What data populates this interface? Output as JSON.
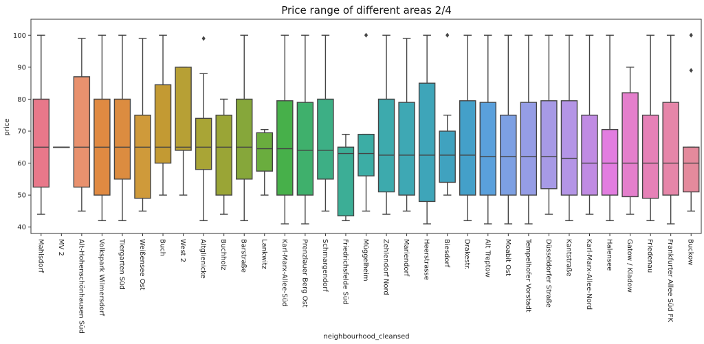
{
  "chart_data": {
    "type": "box",
    "title": "Price range of different areas 2/4",
    "xlabel": "neighbourhood_cleansed",
    "ylabel": "price",
    "ylim": [
      38,
      105
    ],
    "yticks": [
      40,
      50,
      60,
      70,
      80,
      90,
      100
    ],
    "grid": false,
    "legend": "none",
    "categories": [
      {
        "name": "Mahlsdorf",
        "color": "#e8788a",
        "whisker_low": 44,
        "q1": 52.5,
        "median": 65,
        "q3": 80,
        "whisker_high": 100,
        "outliers": []
      },
      {
        "name": "MV 2",
        "color": "#e58563",
        "whisker_low": 65,
        "q1": 65,
        "median": 65,
        "q3": 65,
        "whisker_high": 65,
        "outliers": []
      },
      {
        "name": "Alt-Hohenschönhausen Süd",
        "color": "#e8916e",
        "whisker_low": 45,
        "q1": 52.5,
        "median": 65,
        "q3": 87,
        "whisker_high": 99,
        "outliers": []
      },
      {
        "name": "Volkspark Wilmersdorf",
        "color": "#e08a42",
        "whisker_low": 42,
        "q1": 50,
        "median": 65,
        "q3": 80,
        "whisker_high": 100,
        "outliers": []
      },
      {
        "name": "Tiergarten Süd",
        "color": "#dc8c40",
        "whisker_low": 42,
        "q1": 55,
        "median": 65,
        "q3": 80,
        "whisker_high": 100,
        "outliers": []
      },
      {
        "name": "Weißensee Ost",
        "color": "#cf9a3a",
        "whisker_low": 45,
        "q1": 49,
        "median": 65,
        "q3": 75,
        "whisker_high": 99,
        "outliers": []
      },
      {
        "name": "Buch",
        "color": "#c39a33",
        "whisker_low": 50,
        "q1": 60,
        "median": 65,
        "q3": 84.5,
        "whisker_high": 100,
        "outliers": []
      },
      {
        "name": "West 2",
        "color": "#b7a035",
        "whisker_low": 50,
        "q1": 64,
        "median": 65,
        "q3": 90,
        "whisker_high": 90,
        "outliers": []
      },
      {
        "name": "Altglienicke",
        "color": "#a9a536",
        "whisker_low": 42,
        "q1": 58,
        "median": 65,
        "q3": 74,
        "whisker_high": 88,
        "outliers": [
          99
        ]
      },
      {
        "name": "Buchholz",
        "color": "#9aa536",
        "whisker_low": 44,
        "q1": 50,
        "median": 65,
        "q3": 75,
        "whisker_high": 80,
        "outliers": []
      },
      {
        "name": "Barstraße",
        "color": "#86a73a",
        "whisker_low": 42,
        "q1": 55,
        "median": 65,
        "q3": 80,
        "whisker_high": 100,
        "outliers": []
      },
      {
        "name": "Lankwitz",
        "color": "#6aad3e",
        "whisker_low": 50,
        "q1": 57.5,
        "median": 64.5,
        "q3": 69.5,
        "whisker_high": 70.5,
        "outliers": []
      },
      {
        "name": "Karl-Marx-Allee-Süd",
        "color": "#47b04a",
        "whisker_low": 41,
        "q1": 50,
        "median": 64.5,
        "q3": 79.5,
        "whisker_high": 100,
        "outliers": []
      },
      {
        "name": "Prenzlauer Berg Ost",
        "color": "#3fb06c",
        "whisker_low": 41,
        "q1": 50,
        "median": 64,
        "q3": 79,
        "whisker_high": 100,
        "outliers": []
      },
      {
        "name": "Schmargendorf",
        "color": "#3daf85",
        "whisker_low": 45,
        "q1": 55,
        "median": 64,
        "q3": 80,
        "whisker_high": 100,
        "outliers": []
      },
      {
        "name": "Friedrichsfelde Süd",
        "color": "#3cae96",
        "whisker_low": 42,
        "q1": 43.5,
        "median": 63,
        "q3": 65,
        "whisker_high": 69,
        "outliers": []
      },
      {
        "name": "Müggelheim",
        "color": "#3cada5",
        "whisker_low": 45,
        "q1": 56,
        "median": 63,
        "q3": 69,
        "whisker_high": 69,
        "outliers": [
          100
        ]
      },
      {
        "name": "Zehlendorf  Nord",
        "color": "#3daaad",
        "whisker_low": 44,
        "q1": 51,
        "median": 62.5,
        "q3": 80,
        "whisker_high": 100,
        "outliers": []
      },
      {
        "name": "Mariendorf",
        "color": "#3ea8b4",
        "whisker_low": 45,
        "q1": 50,
        "median": 62.5,
        "q3": 79,
        "whisker_high": 99,
        "outliers": []
      },
      {
        "name": "Heerstrasse",
        "color": "#3ea5b9",
        "whisker_low": 41,
        "q1": 48,
        "median": 62.5,
        "q3": 85,
        "whisker_high": 100,
        "outliers": []
      },
      {
        "name": "Biesdorf",
        "color": "#40a2bf",
        "whisker_low": 50,
        "q1": 54,
        "median": 62.5,
        "q3": 70,
        "whisker_high": 75,
        "outliers": [
          100
        ]
      },
      {
        "name": "Drakestr.",
        "color": "#44a0c9",
        "whisker_low": 42,
        "q1": 50,
        "median": 62.5,
        "q3": 79.5,
        "whisker_high": 100,
        "outliers": []
      },
      {
        "name": "Alt  Treptow",
        "color": "#5aa0dc",
        "whisker_low": 41,
        "q1": 50,
        "median": 62,
        "q3": 79,
        "whisker_high": 100,
        "outliers": []
      },
      {
        "name": "Moabit Ost",
        "color": "#7da0e3",
        "whisker_low": 41,
        "q1": 50,
        "median": 62,
        "q3": 75,
        "whisker_high": 100,
        "outliers": []
      },
      {
        "name": "Tempelhofer Vorstadt",
        "color": "#959de6",
        "whisker_low": 41,
        "q1": 50,
        "median": 62,
        "q3": 79,
        "whisker_high": 100,
        "outliers": []
      },
      {
        "name": "Düsseldorfer Straße",
        "color": "#a79ae6",
        "whisker_low": 44,
        "q1": 52,
        "median": 62,
        "q3": 79.5,
        "whisker_high": 100,
        "outliers": []
      },
      {
        "name": "Kantstraße",
        "color": "#b495e6",
        "whisker_low": 42,
        "q1": 50,
        "median": 61.5,
        "q3": 79.5,
        "whisker_high": 100,
        "outliers": []
      },
      {
        "name": "Karl-Marx-Allee-Nord",
        "color": "#c08be3",
        "whisker_low": 44,
        "q1": 50,
        "median": 60,
        "q3": 75,
        "whisker_high": 100,
        "outliers": []
      },
      {
        "name": "Halensee",
        "color": "#e27de0",
        "whisker_low": 42,
        "q1": 50,
        "median": 60,
        "q3": 70.5,
        "whisker_high": 100,
        "outliers": []
      },
      {
        "name": "Gatow / Kladow",
        "color": "#e47fcc",
        "whisker_low": 44,
        "q1": 49.5,
        "median": 60,
        "q3": 82,
        "whisker_high": 90,
        "outliers": []
      },
      {
        "name": "Friedenau",
        "color": "#e681b7",
        "whisker_low": 42,
        "q1": 49,
        "median": 60,
        "q3": 75,
        "whisker_high": 100,
        "outliers": []
      },
      {
        "name": "Frankfurter Allee Süd FK",
        "color": "#e686a9",
        "whisker_low": 41,
        "q1": 50,
        "median": 60,
        "q3": 79,
        "whisker_high": 100,
        "outliers": []
      },
      {
        "name": "Buckow",
        "color": "#e48a9c",
        "whisker_low": 45,
        "q1": 51,
        "median": 60,
        "q3": 65,
        "whisker_high": 65,
        "outliers": [
          100,
          89
        ]
      }
    ]
  }
}
